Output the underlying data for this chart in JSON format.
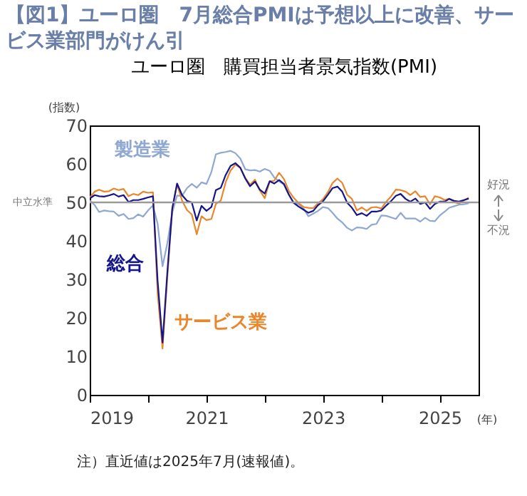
{
  "chart_data": {
    "type": "line",
    "title": "【図1】ユーロ圏　7月総合PMIは予想以上に改善、サービス業部門がけん引",
    "subtitle": "ユーロ圏　購買担当者景気指数(PMI)",
    "ylabel": "(指数)",
    "xlabel": "(年)",
    "x": [
      "2019-01",
      "2019-02",
      "2019-03",
      "2019-04",
      "2019-05",
      "2019-06",
      "2019-07",
      "2019-08",
      "2019-09",
      "2019-10",
      "2019-11",
      "2019-12",
      "2020-01",
      "2020-02",
      "2020-03",
      "2020-04",
      "2020-05",
      "2020-06",
      "2020-07",
      "2020-08",
      "2020-09",
      "2020-10",
      "2020-11",
      "2020-12",
      "2021-01",
      "2021-02",
      "2021-03",
      "2021-04",
      "2021-05",
      "2021-06",
      "2021-07",
      "2021-08",
      "2021-09",
      "2021-10",
      "2021-11",
      "2021-12",
      "2022-01",
      "2022-02",
      "2022-03",
      "2022-04",
      "2022-05",
      "2022-06",
      "2022-07",
      "2022-08",
      "2022-09",
      "2022-10",
      "2022-11",
      "2022-12",
      "2023-01",
      "2023-02",
      "2023-03",
      "2023-04",
      "2023-05",
      "2023-06",
      "2023-07",
      "2023-08",
      "2023-09",
      "2023-10",
      "2023-11",
      "2023-12",
      "2024-01",
      "2024-02",
      "2024-03",
      "2024-04",
      "2024-05",
      "2024-06",
      "2024-07",
      "2024-08",
      "2024-09",
      "2024-10",
      "2024-11",
      "2024-12",
      "2025-01",
      "2025-02",
      "2025-03",
      "2025-04",
      "2025-05",
      "2025-06",
      "2025-07"
    ],
    "series": [
      {
        "name": "製造業",
        "color": "#8fa8d2",
        "values": [
          50.5,
          49.3,
          47.5,
          47.9,
          47.7,
          47.6,
          46.5,
          47.0,
          45.7,
          45.9,
          46.9,
          46.3,
          47.9,
          49.2,
          44.5,
          33.4,
          39.4,
          47.4,
          51.8,
          51.7,
          53.7,
          54.8,
          53.8,
          55.2,
          54.8,
          57.9,
          62.5,
          62.9,
          63.1,
          63.4,
          62.8,
          61.4,
          58.6,
          58.3,
          58.4,
          58.0,
          58.7,
          58.2,
          56.5,
          55.5,
          54.6,
          52.1,
          49.8,
          49.6,
          48.4,
          46.4,
          47.1,
          47.8,
          48.8,
          48.5,
          47.3,
          45.8,
          44.8,
          43.4,
          42.7,
          43.5,
          43.4,
          43.1,
          44.2,
          44.4,
          46.6,
          46.5,
          46.1,
          45.7,
          47.3,
          45.8,
          45.8,
          45.8,
          45.0,
          46.0,
          45.2,
          45.1,
          46.6,
          47.6,
          48.6,
          49.0,
          49.4,
          49.5,
          49.8
        ]
      },
      {
        "name": "サービス業",
        "color": "#e8872c",
        "values": [
          51.2,
          52.8,
          53.3,
          52.8,
          52.9,
          53.6,
          53.2,
          53.5,
          51.6,
          52.2,
          51.9,
          52.8,
          52.5,
          52.6,
          26.4,
          12.0,
          30.5,
          48.3,
          54.7,
          50.5,
          48.0,
          46.9,
          41.7,
          46.4,
          45.4,
          45.7,
          49.6,
          50.5,
          55.2,
          58.3,
          59.8,
          59.0,
          56.4,
          54.6,
          55.9,
          53.1,
          51.1,
          55.5,
          55.6,
          57.7,
          56.1,
          53.0,
          51.2,
          49.8,
          48.8,
          48.6,
          48.5,
          49.8,
          50.8,
          52.7,
          55.0,
          56.2,
          55.1,
          52.0,
          50.9,
          47.9,
          48.7,
          47.8,
          48.7,
          48.8,
          48.4,
          50.2,
          51.5,
          53.3,
          53.2,
          52.8,
          51.9,
          52.9,
          51.4,
          51.6,
          49.5,
          51.6,
          51.3,
          50.6,
          51.0,
          50.1,
          49.7,
          50.5,
          51.2
        ]
      },
      {
        "name": "総合",
        "color": "#15168a",
        "values": [
          51.0,
          51.9,
          51.6,
          51.5,
          51.8,
          52.2,
          51.5,
          51.9,
          50.1,
          50.6,
          50.6,
          50.9,
          51.3,
          51.6,
          29.7,
          13.6,
          31.9,
          48.5,
          54.9,
          51.9,
          50.4,
          50.0,
          45.3,
          49.1,
          47.8,
          48.8,
          53.2,
          53.8,
          57.1,
          59.5,
          60.2,
          59.0,
          56.2,
          54.2,
          55.4,
          53.3,
          52.3,
          55.5,
          54.9,
          55.8,
          54.8,
          52.0,
          49.9,
          48.9,
          48.1,
          47.3,
          47.8,
          49.3,
          50.3,
          52.0,
          53.7,
          54.1,
          52.8,
          49.9,
          48.6,
          46.7,
          47.2,
          46.5,
          47.6,
          47.6,
          47.9,
          49.2,
          50.3,
          51.7,
          52.2,
          50.9,
          50.2,
          51.0,
          49.6,
          50.0,
          48.3,
          49.6,
          50.2,
          50.2,
          50.9,
          50.4,
          50.2,
          50.6,
          51.0
        ]
      }
    ],
    "xlim": [
      "2019-01",
      "2025-09"
    ],
    "xticks": [
      {
        "value": "2019-01",
        "label": "2019"
      },
      {
        "value": "2020-01",
        "label": null
      },
      {
        "value": "2021-01",
        "label": "2021"
      },
      {
        "value": "2022-01",
        "label": null
      },
      {
        "value": "2023-01",
        "label": "2023"
      },
      {
        "value": "2024-01",
        "label": null
      },
      {
        "value": "2025-01",
        "label": "2025"
      }
    ],
    "ylim": [
      0,
      70
    ],
    "yticks": [
      0,
      10,
      20,
      30,
      40,
      50,
      60,
      70
    ],
    "grid": false,
    "legend": false,
    "ref_lines": [
      {
        "axis": "y",
        "value": 50,
        "color": "#9a9a9a"
      }
    ],
    "annotations": [
      "注）直近値は2025年7月(速報値)。",
      "中立水準",
      "好況",
      "不況"
    ]
  }
}
